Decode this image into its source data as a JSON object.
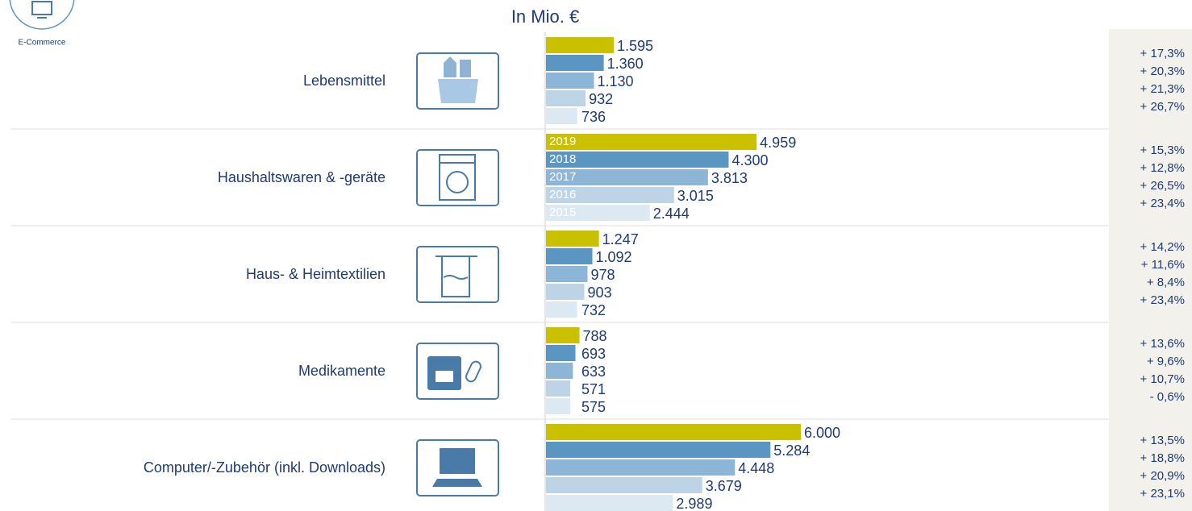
{
  "logo": "E-Commerce",
  "chart_data": {
    "type": "bar",
    "title": "In Mio. €",
    "categories": [
      "Lebensmittel",
      "Haushaltswaren & -geräte",
      "Haus- & Heimtextilien",
      "Medikamente",
      "Computer/-Zubehör (inkl. Downloads)"
    ],
    "xlim": [
      0,
      6000
    ],
    "series": [
      {
        "name": "2019",
        "color": "#c9c100",
        "values": [
          1595,
          4959,
          1247,
          788,
          6000
        ],
        "value_labels": [
          "1.595",
          "4.959",
          "1.247",
          "788",
          "6.000"
        ]
      },
      {
        "name": "2018",
        "color": "#5b95c2",
        "values": [
          1360,
          4300,
          1092,
          693,
          5284
        ],
        "value_labels": [
          "1.360",
          "4.300",
          "1.092",
          "693",
          "5.284"
        ]
      },
      {
        "name": "2017",
        "color": "#8db5d5",
        "values": [
          1130,
          3813,
          978,
          633,
          4448
        ],
        "value_labels": [
          "1.130",
          "3.813",
          "978",
          "633",
          "4.448"
        ]
      },
      {
        "name": "2016",
        "color": "#bdd4e7",
        "values": [
          932,
          3015,
          903,
          571,
          3679
        ],
        "value_labels": [
          "932",
          "3.015",
          "903",
          "571",
          "3.679"
        ]
      },
      {
        "name": "2015",
        "color": "#dce8f2",
        "values": [
          736,
          2444,
          732,
          575,
          2989
        ],
        "value_labels": [
          "736",
          "2.444",
          "732",
          "575",
          "2.989"
        ]
      }
    ],
    "growth": [
      [
        "+ 17,3%",
        "+ 20,3%",
        "+ 21,3%",
        "+ 26,7%"
      ],
      [
        "+ 15,3%",
        "+ 12,8%",
        "+ 26,5%",
        "+ 23,4%"
      ],
      [
        "+ 14,2%",
        "+ 11,6%",
        "+ 8,4%",
        "+ 23,4%"
      ],
      [
        "+ 13,6%",
        "+ 9,6%",
        "+ 10,7%",
        "- 0,6%"
      ],
      [
        "+ 13,5%",
        "+ 18,8%",
        "+ 20,9%",
        "+ 23,1%"
      ]
    ]
  }
}
